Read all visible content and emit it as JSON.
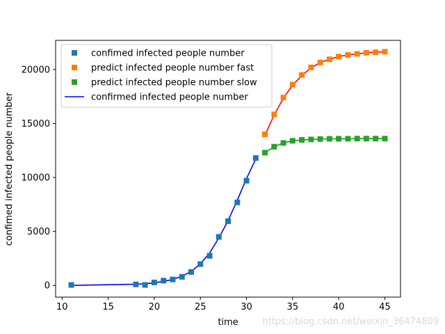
{
  "chart_data": {
    "type": "scatter",
    "title": "",
    "xlabel": "time",
    "ylabel": "confimed infected people number",
    "xlim": [
      9.3,
      46.7
    ],
    "ylim": [
      -1080,
      22700
    ],
    "xticks": [
      10,
      15,
      20,
      25,
      30,
      35,
      40,
      45
    ],
    "yticks": [
      0,
      5000,
      10000,
      15000,
      20000
    ],
    "grid": false,
    "legend_position": "upper left",
    "series": [
      {
        "name": "confimed infected people number",
        "kind": "marker",
        "marker": "square",
        "color": "#1f77b4",
        "x": [
          11,
          18,
          19,
          20,
          21,
          22,
          23,
          24,
          25,
          26,
          27,
          28,
          29,
          30,
          31
        ],
        "y": [
          50,
          100,
          50,
          280,
          450,
          560,
          800,
          1250,
          1980,
          2750,
          4500,
          5950,
          7700,
          9700,
          11800
        ]
      },
      {
        "name": "predict infected people number fast",
        "kind": "marker",
        "marker": "square",
        "color": "#ff7f0e",
        "x": [
          32,
          33,
          34,
          35,
          36,
          37,
          38,
          39,
          40,
          41,
          42,
          43,
          44,
          45
        ],
        "y": [
          14000,
          15850,
          17400,
          18600,
          19500,
          20200,
          20650,
          20950,
          21200,
          21350,
          21450,
          21550,
          21600,
          21650
        ]
      },
      {
        "name": "predict infected people number slow",
        "kind": "marker",
        "marker": "square",
        "color": "#2ca02c",
        "x": [
          32,
          33,
          34,
          35,
          36,
          37,
          38,
          39,
          40,
          41,
          42,
          43,
          44,
          45
        ],
        "y": [
          12300,
          12850,
          13200,
          13400,
          13480,
          13520,
          13560,
          13580,
          13590,
          13590,
          13600,
          13600,
          13600,
          13600
        ]
      },
      {
        "name": "confirmed infected people number",
        "kind": "line",
        "color": "#0000ff",
        "x": [
          11,
          18,
          19,
          20,
          21,
          22,
          23,
          24,
          25,
          26,
          27,
          28,
          29,
          30,
          31
        ],
        "y": [
          0,
          120,
          160,
          250,
          380,
          560,
          850,
          1300,
          2000,
          3000,
          4400,
          6000,
          7900,
          9900,
          11700
        ]
      },
      {
        "name": "",
        "kind": "line",
        "color": "#ff0000",
        "x": [
          32,
          33,
          34,
          35,
          36,
          37,
          38,
          39,
          40,
          41,
          42,
          43,
          44,
          45
        ],
        "y": [
          13900,
          15800,
          17350,
          18550,
          19450,
          20150,
          20650,
          20950,
          21200,
          21350,
          21450,
          21550,
          21600,
          21650
        ]
      },
      {
        "name": "",
        "kind": "line",
        "color": "#00aa00",
        "x": [
          32,
          33,
          34,
          35,
          36,
          37,
          38,
          39,
          40,
          41,
          42,
          43,
          44,
          45
        ],
        "y": [
          12300,
          12850,
          13200,
          13400,
          13480,
          13520,
          13560,
          13580,
          13590,
          13590,
          13600,
          13600,
          13600,
          13600
        ]
      }
    ],
    "legend": [
      {
        "label": "confimed infected people number",
        "kind": "marker",
        "color": "#1f77b4"
      },
      {
        "label": "predict infected people number fast",
        "kind": "marker",
        "color": "#ff7f0e"
      },
      {
        "label": "predict infected people number slow",
        "kind": "marker",
        "color": "#2ca02c"
      },
      {
        "label": "confirmed infected people number",
        "kind": "line",
        "color": "#0000ff"
      }
    ]
  },
  "watermark": "https://blog.csdn.net/weixin_36474809"
}
